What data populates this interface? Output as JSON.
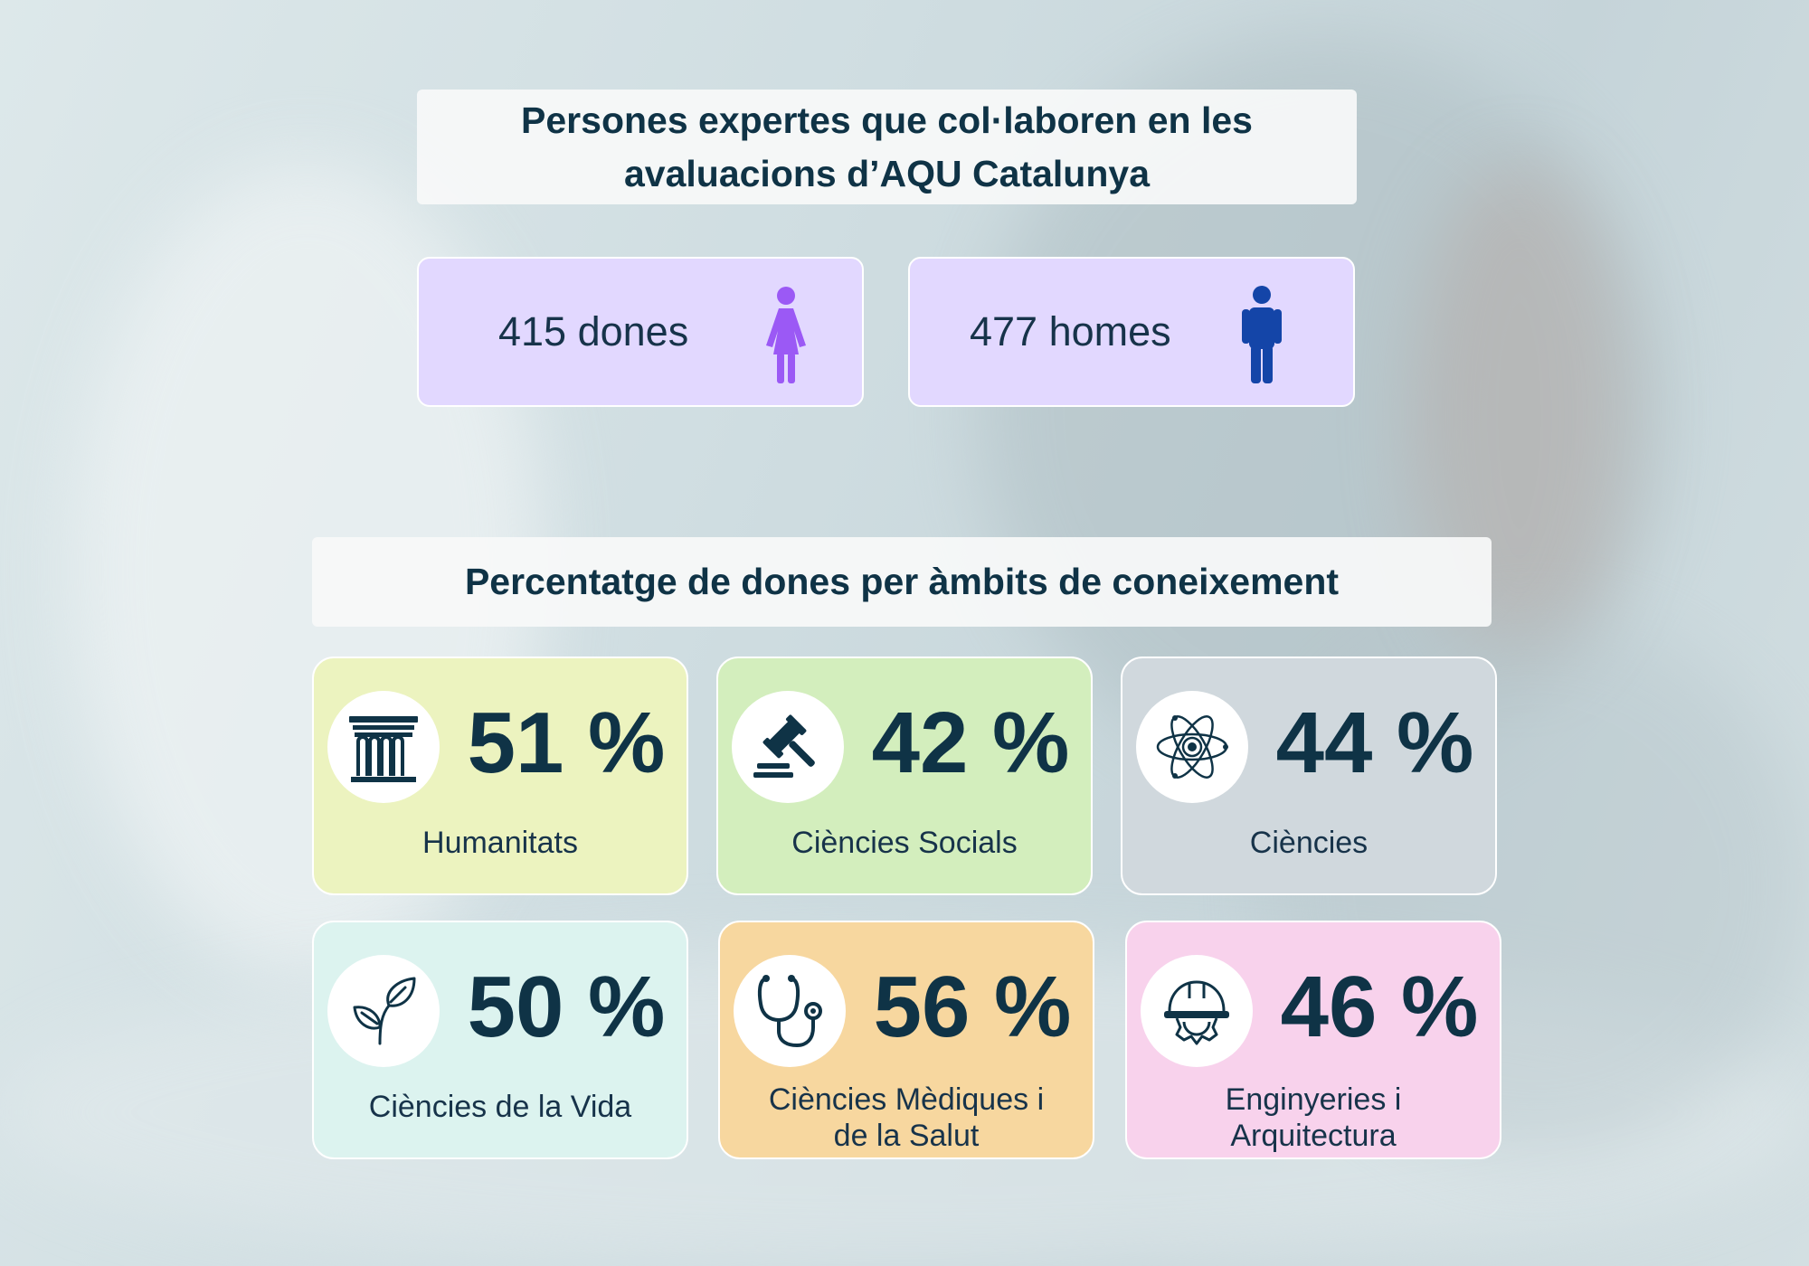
{
  "header": {
    "title": "Persones expertes que col·laboren en les avaluacions d’AQU Catalunya"
  },
  "counts": {
    "women": {
      "label": "415 dones",
      "icon": "female-person-icon",
      "color": "#9b59f5"
    },
    "men": {
      "label": "477 homes",
      "icon": "male-person-icon",
      "color": "#1445a8"
    }
  },
  "section": {
    "title": "Percentatge de dones per àmbits de coneixement"
  },
  "fields": [
    {
      "value": "51 %",
      "label": "Humanitats",
      "icon": "column-icon",
      "color": "#ecf3bf"
    },
    {
      "value": "42 %",
      "label": "Ciències Socials",
      "icon": "gavel-icon",
      "color": "#d3eebd"
    },
    {
      "value": "44 %",
      "label": "Ciències",
      "icon": "atom-icon",
      "color": "#d0d8dd"
    },
    {
      "value": "50 %",
      "label": "Ciències de la Vida",
      "icon": "leaf-icon",
      "color": "#dcf3ef"
    },
    {
      "value": "56 %",
      "label_lines": [
        "Ciències Mèdiques i",
        "de la Salut"
      ],
      "icon": "stethoscope-icon",
      "color": "#f7d79f"
    },
    {
      "value": "46 %",
      "label_lines": [
        "Enginyeries i",
        "Arquitectura"
      ],
      "icon": "hardhat-gear-icon",
      "color": "#f8d2ec"
    }
  ]
}
